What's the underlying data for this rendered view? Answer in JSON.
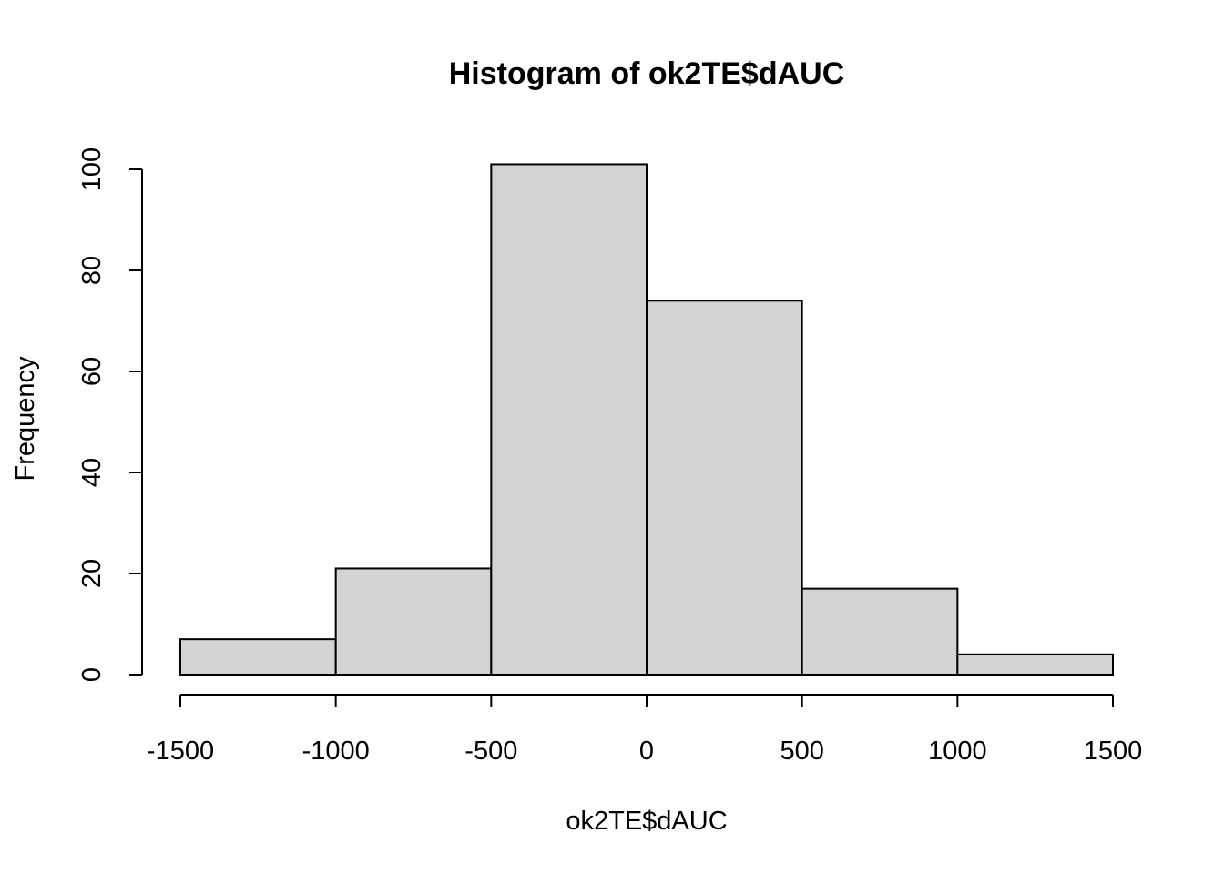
{
  "chart_data": {
    "type": "bar",
    "title": "Histogram of ok2TE$dAUC",
    "xlabel": "ok2TE$dAUC",
    "ylabel": "Frequency",
    "bins": [
      {
        "start": -1500,
        "end": -1000,
        "count": 7
      },
      {
        "start": -1000,
        "end": -500,
        "count": 21
      },
      {
        "start": -500,
        "end": 0,
        "count": 101
      },
      {
        "start": 0,
        "end": 500,
        "count": 74
      },
      {
        "start": 500,
        "end": 1000,
        "count": 17
      },
      {
        "start": 1000,
        "end": 1500,
        "count": 4
      }
    ],
    "xlim": [
      -1500,
      1500
    ],
    "ylim": [
      0,
      100
    ],
    "x_ticks": [
      -1500,
      -1000,
      -500,
      0,
      500,
      1000,
      1500
    ],
    "y_ticks": [
      0,
      20,
      40,
      60,
      80,
      100
    ],
    "bar_color": "#d3d3d3",
    "grid": false
  }
}
